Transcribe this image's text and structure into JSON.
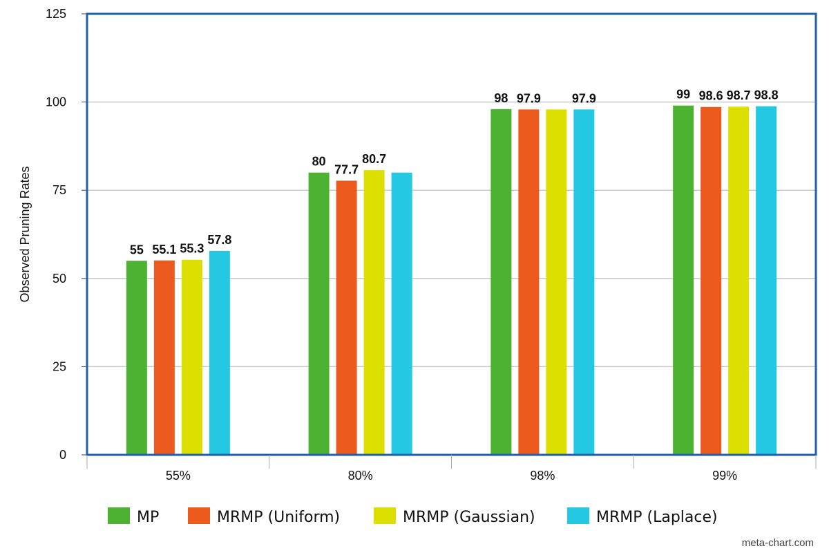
{
  "chart_data": {
    "type": "bar",
    "categories": [
      "55%",
      "80%",
      "98%",
      "99%"
    ],
    "series": [
      {
        "name": "MP",
        "color": "#4db232",
        "values": [
          55,
          80,
          98,
          99
        ],
        "labels": [
          "55",
          "80",
          "98",
          "99"
        ]
      },
      {
        "name": "MRMP (Uniform)",
        "color": "#ec5a1e",
        "values": [
          55.1,
          77.7,
          97.9,
          98.6
        ],
        "labels": [
          "55.1",
          "77.7",
          "97.9",
          "98.6"
        ]
      },
      {
        "name": "MRMP (Gaussian)",
        "color": "#dbe000",
        "values": [
          55.3,
          80.7,
          97.9,
          98.7
        ],
        "labels": [
          "55.3",
          "80.7",
          "",
          "98.7"
        ]
      },
      {
        "name": "MRMP (Laplace)",
        "color": "#25c8e3",
        "values": [
          57.8,
          80,
          97.9,
          98.8
        ],
        "labels": [
          "57.8",
          "",
          "97.9",
          "98.8"
        ]
      }
    ],
    "title": "",
    "xlabel": "",
    "ylabel": "Observed Pruning Rates",
    "ylim": [
      0,
      125
    ],
    "yticks": [
      0,
      25,
      50,
      75,
      100,
      125
    ],
    "grid": true,
    "legend_position": "bottom",
    "frame_color": "#1f5fae"
  },
  "watermark": "meta-chart.com"
}
